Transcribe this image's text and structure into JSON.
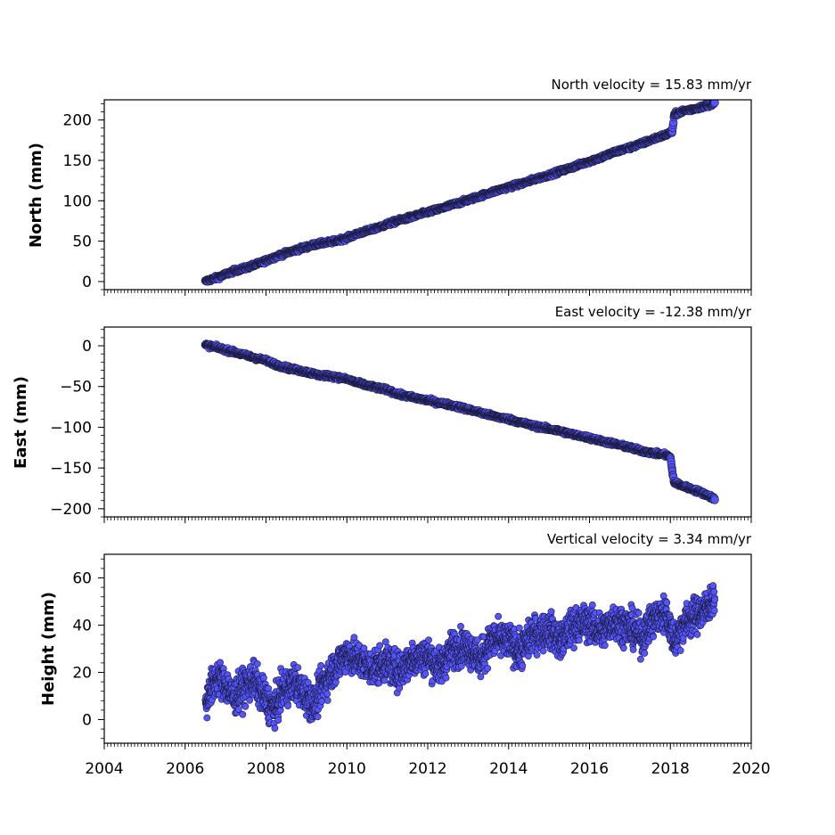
{
  "figure": {
    "background": "#ffffff"
  },
  "chart_data": [
    {
      "type": "scatter",
      "title": "North velocity = 15.83 mm/yr",
      "xlabel": "",
      "ylabel": "North (mm)",
      "xlim": [
        2004,
        2020
      ],
      "ylim": [
        -10,
        225
      ],
      "yticks": [
        0,
        50,
        100,
        150,
        200
      ],
      "xticks": [
        2004,
        2006,
        2008,
        2010,
        2012,
        2014,
        2016,
        2018,
        2020
      ],
      "show_xtick_labels": false,
      "grid": false,
      "marker_color": "#5555ff",
      "marker_edge": "#1a1a3a",
      "series": [
        {
          "x": [
            2006.5,
            2006.6,
            2006.8,
            2007.0,
            2007.2,
            2007.5,
            2007.8,
            2008.0,
            2008.3,
            2008.6,
            2009.0,
            2009.3,
            2009.6,
            2010.0,
            2010.3,
            2010.6,
            2011.0,
            2011.3,
            2011.6,
            2012.0,
            2012.3,
            2012.6,
            2013.0,
            2013.3,
            2013.6,
            2014.0,
            2014.3,
            2014.6,
            2015.0,
            2015.3,
            2015.6,
            2016.0,
            2016.3,
            2016.6,
            2017.0,
            2017.3,
            2017.6,
            2017.9,
            2018.05,
            2018.1,
            2018.3,
            2018.6,
            2018.9,
            2019.1
          ],
          "y": [
            0,
            2,
            5,
            9,
            13,
            17,
            22,
            26,
            32,
            37,
            43,
            47,
            49,
            54,
            60,
            64,
            71,
            76,
            80,
            86,
            90,
            95,
            101,
            106,
            111,
            117,
            121,
            126,
            132,
            137,
            142,
            149,
            154,
            160,
            166,
            171,
            177,
            182,
            186,
            207,
            211,
            214,
            218,
            221
          ]
        }
      ]
    },
    {
      "type": "scatter",
      "title": "East velocity = -12.38 mm/yr",
      "xlabel": "",
      "ylabel": "East (mm)",
      "xlim": [
        2004,
        2020
      ],
      "ylim": [
        -210,
        23
      ],
      "yticks": [
        0,
        -50,
        -100,
        -150,
        -200
      ],
      "ytick_labels": [
        "0",
        "−50",
        "−100",
        "−150",
        "−200"
      ],
      "xticks": [
        2004,
        2006,
        2008,
        2010,
        2012,
        2014,
        2016,
        2018,
        2020
      ],
      "show_xtick_labels": false,
      "grid": false,
      "marker_color": "#5555ff",
      "marker_edge": "#1a1a3a",
      "series": [
        {
          "x": [
            2006.5,
            2006.7,
            2007.0,
            2007.3,
            2007.6,
            2008.0,
            2008.3,
            2008.6,
            2009.0,
            2009.3,
            2009.6,
            2010.0,
            2010.3,
            2010.6,
            2011.0,
            2011.3,
            2011.6,
            2012.0,
            2012.3,
            2012.6,
            2013.0,
            2013.3,
            2013.6,
            2014.0,
            2014.3,
            2014.6,
            2015.0,
            2015.3,
            2015.6,
            2016.0,
            2016.3,
            2016.6,
            2017.0,
            2017.3,
            2017.6,
            2017.9,
            2018.0,
            2018.05,
            2018.1,
            2018.3,
            2018.6,
            2018.9,
            2019.1
          ],
          "y": [
            1,
            -1,
            -5,
            -9,
            -13,
            -18,
            -24,
            -28,
            -32,
            -36,
            -37,
            -41,
            -46,
            -50,
            -54,
            -60,
            -63,
            -67,
            -70,
            -73,
            -78,
            -82,
            -86,
            -90,
            -94,
            -98,
            -102,
            -105,
            -109,
            -113,
            -117,
            -120,
            -125,
            -129,
            -132,
            -134,
            -137,
            -155,
            -168,
            -172,
            -177,
            -183,
            -188
          ]
        }
      ]
    },
    {
      "type": "scatter",
      "title": "Vertical velocity = 3.34 mm/yr",
      "xlabel": "",
      "ylabel": "Height (mm)",
      "xlim": [
        2004,
        2020
      ],
      "ylim": [
        -10,
        70
      ],
      "yticks": [
        0,
        20,
        40,
        60
      ],
      "xticks": [
        2004,
        2006,
        2008,
        2010,
        2012,
        2014,
        2016,
        2018,
        2020
      ],
      "xtick_labels": [
        "2004",
        "2006",
        "2008",
        "2010",
        "2012",
        "2014",
        "2016",
        "2018",
        "2020"
      ],
      "show_xtick_labels": true,
      "grid": false,
      "marker_color": "#5555ff",
      "marker_edge": "#1a1a3a",
      "series": [
        {
          "x": [
            2006.5,
            2006.6,
            2006.8,
            2007.0,
            2007.2,
            2007.4,
            2007.7,
            2008.0,
            2008.2,
            2008.4,
            2008.7,
            2009.0,
            2009.2,
            2009.4,
            2009.7,
            2010.0,
            2010.3,
            2010.6,
            2011.0,
            2011.3,
            2011.6,
            2012.0,
            2012.3,
            2012.6,
            2013.0,
            2013.3,
            2013.6,
            2014.0,
            2014.3,
            2014.6,
            2015.0,
            2015.3,
            2015.6,
            2016.0,
            2016.3,
            2016.6,
            2017.0,
            2017.3,
            2017.6,
            2017.9,
            2018.1,
            2018.3,
            2018.6,
            2018.9,
            2019.1
          ],
          "y": [
            5,
            12,
            18,
            15,
            9,
            13,
            17,
            8,
            4,
            12,
            16,
            10,
            6,
            15,
            22,
            28,
            25,
            22,
            24,
            20,
            26,
            27,
            22,
            30,
            31,
            25,
            34,
            33,
            29,
            36,
            38,
            33,
            40,
            41,
            37,
            42,
            39,
            35,
            43,
            45,
            33,
            40,
            44,
            47,
            52
          ]
        }
      ]
    }
  ]
}
